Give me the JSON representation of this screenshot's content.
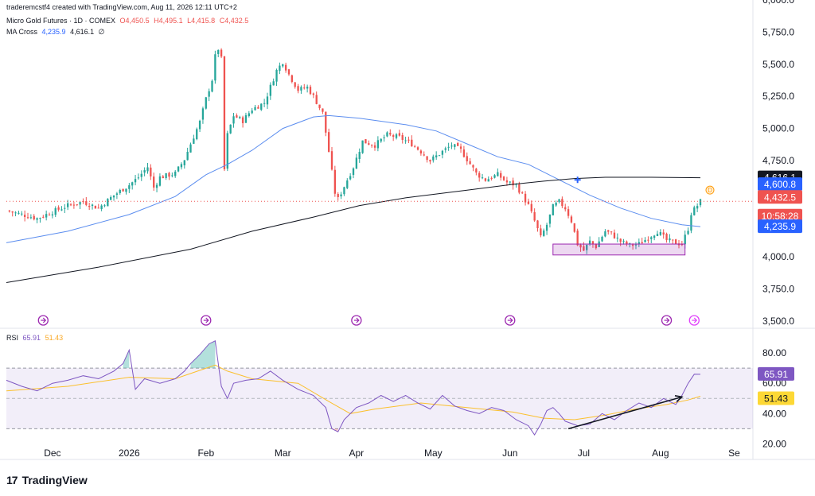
{
  "header": {
    "created_line": "traderemcstf4 created with TradingView.com, Aug 11, 2026 12:11 UTC+2",
    "symbol_line": {
      "name": "Micro Gold Futures · 1D · COMEX",
      "o": "O4,450.5",
      "h": "H4,495.1",
      "l": "L4,415.8",
      "c": "C4,432.5"
    },
    "ma_line": {
      "name": "MA Cross",
      "v1": "4,235.9",
      "v2": "4,616.1",
      "suffix": "∅"
    }
  },
  "rsi_header": {
    "name": "RSI",
    "v1": "65.91",
    "v2": "51.43"
  },
  "footer": {
    "brand": "TradingView",
    "mark": "17"
  },
  "colors": {
    "up": "#26a69a",
    "down": "#ef5350",
    "ma_fast": "#2962ff",
    "ma_slow": "#131722",
    "rsi": "#7e57c2",
    "rsi_ma": "#fbc02d",
    "box": "#9c27b0"
  },
  "chart_data": [
    {
      "type": "candlestick",
      "title": "Micro Gold Futures · 1D · COMEX",
      "ylim": [
        3500,
        6000
      ],
      "price_ticks": [
        "3,500.0",
        "3,750.0",
        "4,000.0",
        "4,250.0",
        "4,500.0",
        "4,750.0",
        "5,000.0",
        "5,250.0",
        "5,500.0",
        "5,750.0",
        "6,000.0"
      ],
      "x_ticks": [
        "Dec",
        "2026",
        "Feb",
        "Mar",
        "Apr",
        "May",
        "Jun",
        "Jul",
        "Aug",
        "Se"
      ],
      "close_path": [
        [
          0,
          4360
        ],
        [
          5,
          4330
        ],
        [
          10,
          4300
        ],
        [
          15,
          4350
        ],
        [
          20,
          4400
        ],
        [
          25,
          4430
        ],
        [
          30,
          4380
        ],
        [
          35,
          4480
        ],
        [
          40,
          4560
        ],
        [
          43,
          4620
        ],
        [
          46,
          4700
        ],
        [
          48,
          4540
        ],
        [
          50,
          4620
        ],
        [
          55,
          4650
        ],
        [
          58,
          4760
        ],
        [
          60,
          4880
        ],
        [
          63,
          5050
        ],
        [
          65,
          5230
        ],
        [
          67,
          5380
        ],
        [
          68,
          5560
        ],
        [
          69,
          5620
        ],
        [
          70,
          5540
        ],
        [
          71,
          4680
        ],
        [
          72,
          4950
        ],
        [
          74,
          5100
        ],
        [
          77,
          5060
        ],
        [
          80,
          5150
        ],
        [
          84,
          5200
        ],
        [
          88,
          5450
        ],
        [
          90,
          5520
        ],
        [
          92,
          5420
        ],
        [
          95,
          5300
        ],
        [
          98,
          5320
        ],
        [
          100,
          5250
        ],
        [
          103,
          5120
        ],
        [
          105,
          4820
        ],
        [
          107,
          4500
        ],
        [
          108,
          4450
        ],
        [
          110,
          4550
        ],
        [
          113,
          4700
        ],
        [
          116,
          4900
        ],
        [
          120,
          4870
        ],
        [
          124,
          4950
        ],
        [
          128,
          4930
        ],
        [
          132,
          4880
        ],
        [
          135,
          4820
        ],
        [
          138,
          4750
        ],
        [
          142,
          4820
        ],
        [
          145,
          4870
        ],
        [
          148,
          4830
        ],
        [
          150,
          4760
        ],
        [
          153,
          4650
        ],
        [
          156,
          4600
        ],
        [
          160,
          4640
        ],
        [
          163,
          4580
        ],
        [
          166,
          4560
        ],
        [
          168,
          4480
        ],
        [
          170,
          4400
        ],
        [
          172,
          4280
        ],
        [
          174,
          4150
        ],
        [
          176,
          4250
        ],
        [
          178,
          4390
        ],
        [
          180,
          4430
        ],
        [
          182,
          4380
        ],
        [
          184,
          4280
        ],
        [
          186,
          4100
        ],
        [
          188,
          4050
        ],
        [
          190,
          4120
        ],
        [
          192,
          4080
        ],
        [
          195,
          4200
        ],
        [
          197,
          4180
        ],
        [
          200,
          4120
        ],
        [
          203,
          4090
        ],
        [
          206,
          4100
        ],
        [
          209,
          4150
        ],
        [
          212,
          4200
        ],
        [
          215,
          4130
        ],
        [
          218,
          4110
        ],
        [
          220,
          4100
        ],
        [
          222,
          4220
        ],
        [
          223,
          4340
        ],
        [
          225,
          4400
        ],
        [
          226,
          4432.5
        ]
      ],
      "ma_fast_path": [
        [
          0,
          4110
        ],
        [
          20,
          4200
        ],
        [
          40,
          4330
        ],
        [
          55,
          4470
        ],
        [
          65,
          4640
        ],
        [
          72,
          4720
        ],
        [
          80,
          4830
        ],
        [
          90,
          5000
        ],
        [
          100,
          5090
        ],
        [
          105,
          5100
        ],
        [
          115,
          5080
        ],
        [
          130,
          5030
        ],
        [
          140,
          4980
        ],
        [
          150,
          4880
        ],
        [
          160,
          4780
        ],
        [
          170,
          4720
        ],
        [
          180,
          4600
        ],
        [
          190,
          4480
        ],
        [
          200,
          4380
        ],
        [
          210,
          4300
        ],
        [
          220,
          4250
        ],
        [
          226,
          4235.9
        ]
      ],
      "ma_slow_path": [
        [
          0,
          3800
        ],
        [
          30,
          3920
        ],
        [
          60,
          4060
        ],
        [
          80,
          4200
        ],
        [
          100,
          4310
        ],
        [
          115,
          4400
        ],
        [
          130,
          4460
        ],
        [
          150,
          4520
        ],
        [
          165,
          4565
        ],
        [
          175,
          4590
        ],
        [
          185,
          4610
        ],
        [
          195,
          4620
        ],
        [
          210,
          4620
        ],
        [
          226,
          4616.1
        ]
      ],
      "cross_marker": {
        "x_index": 186,
        "y": 4600
      },
      "support_box": {
        "x_start_index": 178,
        "x_end_index": 221,
        "y_low": 4015,
        "y_high": 4100
      },
      "last_price_tags": [
        {
          "label": "4,616.1",
          "y": 4616.1,
          "color": "#131722"
        },
        {
          "label": "4,600.8",
          "y": 4600.8,
          "color": "#2962ff"
        },
        {
          "label": "4,432.5",
          "y": 4432.5,
          "color": "#ef5350"
        },
        {
          "label": "10:58:28",
          "y": 4380,
          "color": "#ef5350"
        },
        {
          "label": "4,235.9",
          "y": 4235.9,
          "color": "#2962ff"
        }
      ],
      "dividend_marker": "D",
      "event_markers_index": [
        12,
        65,
        114,
        164,
        215,
        224
      ]
    },
    {
      "type": "line",
      "title": "RSI",
      "ylim": [
        15,
        90
      ],
      "ticks": [
        "20.00",
        "40.00",
        "60.00",
        "80.00"
      ],
      "band": [
        30,
        70
      ],
      "series": [
        {
          "name": "RSI",
          "points": [
            [
              0,
              62
            ],
            [
              5,
              58
            ],
            [
              10,
              55
            ],
            [
              15,
              60
            ],
            [
              20,
              62
            ],
            [
              25,
              65
            ],
            [
              30,
              63
            ],
            [
              35,
              68
            ],
            [
              38,
              73
            ],
            [
              40,
              82
            ],
            [
              42,
              56
            ],
            [
              45,
              63
            ],
            [
              50,
              60
            ],
            [
              55,
              63
            ],
            [
              58,
              68
            ],
            [
              60,
              73
            ],
            [
              63,
              79
            ],
            [
              66,
              86
            ],
            [
              68,
              88
            ],
            [
              70,
              58
            ],
            [
              72,
              50
            ],
            [
              74,
              60
            ],
            [
              78,
              62
            ],
            [
              82,
              63
            ],
            [
              86,
              68
            ],
            [
              90,
              62
            ],
            [
              95,
              56
            ],
            [
              100,
              52
            ],
            [
              104,
              44
            ],
            [
              106,
              30
            ],
            [
              108,
              28
            ],
            [
              110,
              36
            ],
            [
              114,
              44
            ],
            [
              118,
              47
            ],
            [
              122,
              52
            ],
            [
              126,
              48
            ],
            [
              130,
              52
            ],
            [
              134,
              47
            ],
            [
              138,
              43
            ],
            [
              142,
              52
            ],
            [
              146,
              45
            ],
            [
              150,
              42
            ],
            [
              154,
              40
            ],
            [
              158,
              44
            ],
            [
              162,
              42
            ],
            [
              166,
              36
            ],
            [
              170,
              32
            ],
            [
              172,
              26
            ],
            [
              174,
              33
            ],
            [
              176,
              42
            ],
            [
              178,
              44
            ],
            [
              180,
              40
            ],
            [
              182,
              35
            ],
            [
              186,
              32
            ],
            [
              190,
              33
            ],
            [
              194,
              40
            ],
            [
              198,
              36
            ],
            [
              202,
              42
            ],
            [
              206,
              47
            ],
            [
              210,
              44
            ],
            [
              214,
              50
            ],
            [
              218,
              46
            ],
            [
              220,
              52
            ],
            [
              222,
              60
            ],
            [
              224,
              66
            ],
            [
              226,
              65.91
            ]
          ]
        },
        {
          "name": "RSI-based MA",
          "points": [
            [
              0,
              55
            ],
            [
              20,
              58
            ],
            [
              40,
              64
            ],
            [
              55,
              63
            ],
            [
              68,
              72
            ],
            [
              72,
              68
            ],
            [
              80,
              63
            ],
            [
              95,
              60
            ],
            [
              105,
              48
            ],
            [
              112,
              40
            ],
            [
              120,
              43
            ],
            [
              135,
              47
            ],
            [
              150,
              44
            ],
            [
              165,
              41
            ],
            [
              175,
              37
            ],
            [
              185,
              36
            ],
            [
              195,
              39
            ],
            [
              205,
              43
            ],
            [
              215,
              46
            ],
            [
              222,
              49
            ],
            [
              226,
              51.43
            ]
          ]
        }
      ],
      "trend_arrow": {
        "from": [
          183,
          30
        ],
        "to": [
          220,
          51
        ]
      }
    }
  ]
}
